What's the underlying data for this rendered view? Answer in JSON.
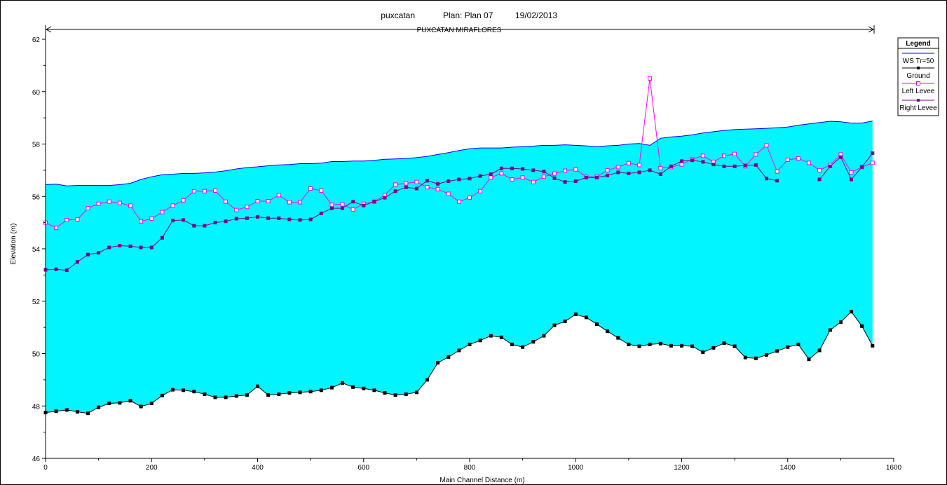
{
  "chart_data": {
    "type": "line",
    "title_parts": [
      "puxcatan",
      "Plan: Plan 07",
      "19/02/2013"
    ],
    "reach_label": "PUXCATAN MIRAFLORES",
    "xlabel": "Main Channel Distance (m)",
    "ylabel": "Elevation (m)",
    "xlim": [
      0,
      1600
    ],
    "ylim": [
      46,
      62
    ],
    "x_ticks": [
      0,
      200,
      400,
      600,
      800,
      1000,
      1200,
      1400,
      1600
    ],
    "y_ticks": [
      46,
      48,
      50,
      52,
      54,
      56,
      58,
      60,
      62
    ],
    "grid": false,
    "legend": {
      "title": "Legend",
      "placement": "right",
      "entries": [
        "WS  Tr=50",
        "Ground",
        "Left Levee",
        "Right Levee"
      ]
    },
    "colors": {
      "ws_fill": "#00f5ff",
      "ws_line": "#0000ff",
      "ground": "#000000",
      "left_levee": "#ff00ff",
      "right_levee": "#800080"
    },
    "series": [
      {
        "name": "WS  Tr=50",
        "x": [
          0,
          20,
          40,
          60,
          80,
          100,
          120,
          140,
          160,
          180,
          200,
          220,
          240,
          260,
          280,
          300,
          320,
          340,
          360,
          380,
          400,
          420,
          440,
          460,
          480,
          500,
          520,
          540,
          560,
          580,
          600,
          620,
          640,
          660,
          680,
          700,
          720,
          740,
          760,
          780,
          800,
          820,
          840,
          860,
          880,
          900,
          920,
          940,
          960,
          980,
          1000,
          1020,
          1040,
          1060,
          1080,
          1100,
          1120,
          1140,
          1160,
          1180,
          1200,
          1220,
          1240,
          1260,
          1280,
          1300,
          1320,
          1340,
          1360,
          1380,
          1400,
          1420,
          1440,
          1460,
          1480,
          1500,
          1520,
          1540,
          1560
        ],
        "values": [
          56.45,
          56.47,
          56.4,
          56.42,
          56.42,
          56.42,
          56.42,
          56.45,
          56.5,
          56.65,
          56.75,
          56.83,
          56.85,
          56.88,
          56.88,
          56.9,
          56.93,
          56.98,
          57.05,
          57.1,
          57.13,
          57.17,
          57.2,
          57.22,
          57.25,
          57.25,
          57.27,
          57.33,
          57.33,
          57.35,
          57.35,
          57.38,
          57.42,
          57.43,
          57.45,
          57.48,
          57.53,
          57.6,
          57.67,
          57.75,
          57.82,
          57.85,
          57.85,
          57.85,
          57.88,
          57.9,
          57.92,
          57.95,
          57.95,
          57.97,
          57.95,
          57.93,
          57.9,
          57.93,
          57.95,
          58.0,
          58.02,
          57.95,
          58.22,
          58.27,
          58.3,
          58.35,
          58.42,
          58.47,
          58.52,
          58.55,
          58.57,
          58.58,
          58.6,
          58.62,
          58.65,
          58.72,
          58.77,
          58.82,
          58.87,
          58.85,
          58.8,
          58.8,
          58.88
        ]
      },
      {
        "name": "Ground",
        "x": [
          0,
          20,
          40,
          60,
          80,
          100,
          120,
          140,
          160,
          180,
          200,
          220,
          240,
          260,
          280,
          300,
          320,
          340,
          360,
          380,
          400,
          420,
          440,
          460,
          480,
          500,
          520,
          540,
          560,
          580,
          600,
          620,
          640,
          660,
          680,
          700,
          720,
          740,
          760,
          780,
          800,
          820,
          840,
          860,
          880,
          900,
          920,
          940,
          960,
          980,
          1000,
          1020,
          1040,
          1060,
          1080,
          1100,
          1120,
          1140,
          1160,
          1180,
          1200,
          1220,
          1240,
          1260,
          1280,
          1300,
          1320,
          1340,
          1360,
          1380,
          1400,
          1420,
          1440,
          1460,
          1480,
          1500,
          1520,
          1540,
          1560
        ],
        "values": [
          47.75,
          47.8,
          47.85,
          47.78,
          47.72,
          47.95,
          48.1,
          48.12,
          48.2,
          47.98,
          48.1,
          48.4,
          48.62,
          48.6,
          48.55,
          48.45,
          48.33,
          48.33,
          48.38,
          48.42,
          48.75,
          48.42,
          48.45,
          48.5,
          48.52,
          48.55,
          48.6,
          48.7,
          48.88,
          48.72,
          48.67,
          48.6,
          48.5,
          48.42,
          48.45,
          48.52,
          49.0,
          49.65,
          49.87,
          50.12,
          50.35,
          50.5,
          50.68,
          50.62,
          50.35,
          50.25,
          50.45,
          50.68,
          51.08,
          51.23,
          51.5,
          51.38,
          51.12,
          50.85,
          50.6,
          50.35,
          50.28,
          50.35,
          50.38,
          50.3,
          50.3,
          50.28,
          50.05,
          50.22,
          50.4,
          50.28,
          49.85,
          49.82,
          49.95,
          50.1,
          50.25,
          50.35,
          49.78,
          50.12,
          50.9,
          51.2,
          51.6,
          51.05,
          50.3
        ]
      },
      {
        "name": "Left Levee",
        "x": [
          0,
          20,
          40,
          60,
          80,
          100,
          120,
          140,
          160,
          180,
          200,
          220,
          240,
          260,
          280,
          300,
          320,
          340,
          360,
          380,
          400,
          420,
          440,
          460,
          480,
          500,
          520,
          540,
          560,
          580,
          600,
          620,
          640,
          660,
          680,
          700,
          720,
          740,
          760,
          780,
          800,
          820,
          840,
          860,
          880,
          900,
          920,
          940,
          960,
          980,
          1000,
          1020,
          1040,
          1060,
          1080,
          1100,
          1120,
          1140,
          1160,
          1180,
          1200,
          1220,
          1240,
          1260,
          1280,
          1300,
          1320,
          1340,
          1360,
          1380,
          1400,
          1420,
          1440,
          1460,
          1480,
          1500,
          1520,
          1540,
          1560
        ],
        "values": [
          55.0,
          54.8,
          55.1,
          55.12,
          55.55,
          55.72,
          55.8,
          55.75,
          55.65,
          55.05,
          55.15,
          55.4,
          55.65,
          55.85,
          56.2,
          56.2,
          56.22,
          55.8,
          55.48,
          55.6,
          55.82,
          55.82,
          56.05,
          55.78,
          55.78,
          56.3,
          56.22,
          55.68,
          55.7,
          55.5,
          55.72,
          55.8,
          56.05,
          56.45,
          56.5,
          56.55,
          56.35,
          56.28,
          56.1,
          55.8,
          55.95,
          56.2,
          56.72,
          56.88,
          56.65,
          56.72,
          56.55,
          56.75,
          56.87,
          56.98,
          57.03,
          56.75,
          56.75,
          57.0,
          57.12,
          57.27,
          57.2,
          60.5,
          57.08,
          57.12,
          57.22,
          57.42,
          57.55,
          57.32,
          57.55,
          57.62,
          57.15,
          57.6,
          57.95,
          56.95,
          57.4,
          57.45,
          57.28,
          57.0,
          57.2,
          57.6,
          56.92,
          57.12,
          57.28
        ]
      },
      {
        "name": "Right Levee",
        "x": [
          0,
          20,
          40,
          60,
          80,
          100,
          120,
          140,
          160,
          180,
          200,
          220,
          240,
          260,
          280,
          300,
          320,
          340,
          360,
          380,
          400,
          420,
          440,
          460,
          480,
          500,
          520,
          540,
          560,
          580,
          600,
          620,
          640,
          660,
          680,
          700,
          720,
          740,
          760,
          780,
          800,
          820,
          840,
          860,
          880,
          900,
          920,
          940,
          960,
          980,
          1000,
          1020,
          1040,
          1060,
          1080,
          1100,
          1120,
          1140,
          1160,
          1180,
          1200,
          1220,
          1240,
          1260,
          1280,
          1300,
          1320,
          1340,
          1360,
          1380,
          1400,
          1420,
          1440,
          1460,
          1480,
          1500,
          1520,
          1540,
          1560
        ],
        "values": [
          53.2,
          53.22,
          53.18,
          53.5,
          53.78,
          53.85,
          54.05,
          54.12,
          54.1,
          54.05,
          54.05,
          54.42,
          55.08,
          55.1,
          54.88,
          54.88,
          55.0,
          55.05,
          55.15,
          55.17,
          55.22,
          55.17,
          55.17,
          55.12,
          55.1,
          55.12,
          55.35,
          55.55,
          55.55,
          55.8,
          55.65,
          55.8,
          55.95,
          56.2,
          56.35,
          56.3,
          56.6,
          56.48,
          56.58,
          56.65,
          56.68,
          56.78,
          56.85,
          57.07,
          57.07,
          57.05,
          57.0,
          56.95,
          56.7,
          56.55,
          56.58,
          56.72,
          56.72,
          56.8,
          56.92,
          56.88,
          56.92,
          57.0,
          56.85,
          57.15,
          57.35,
          57.38,
          57.32,
          57.22,
          57.15,
          57.15,
          57.18,
          57.2,
          56.68,
          56.6,
          null,
          null,
          null,
          56.65,
          57.15,
          57.5,
          56.65,
          57.12,
          57.65
        ]
      }
    ]
  }
}
